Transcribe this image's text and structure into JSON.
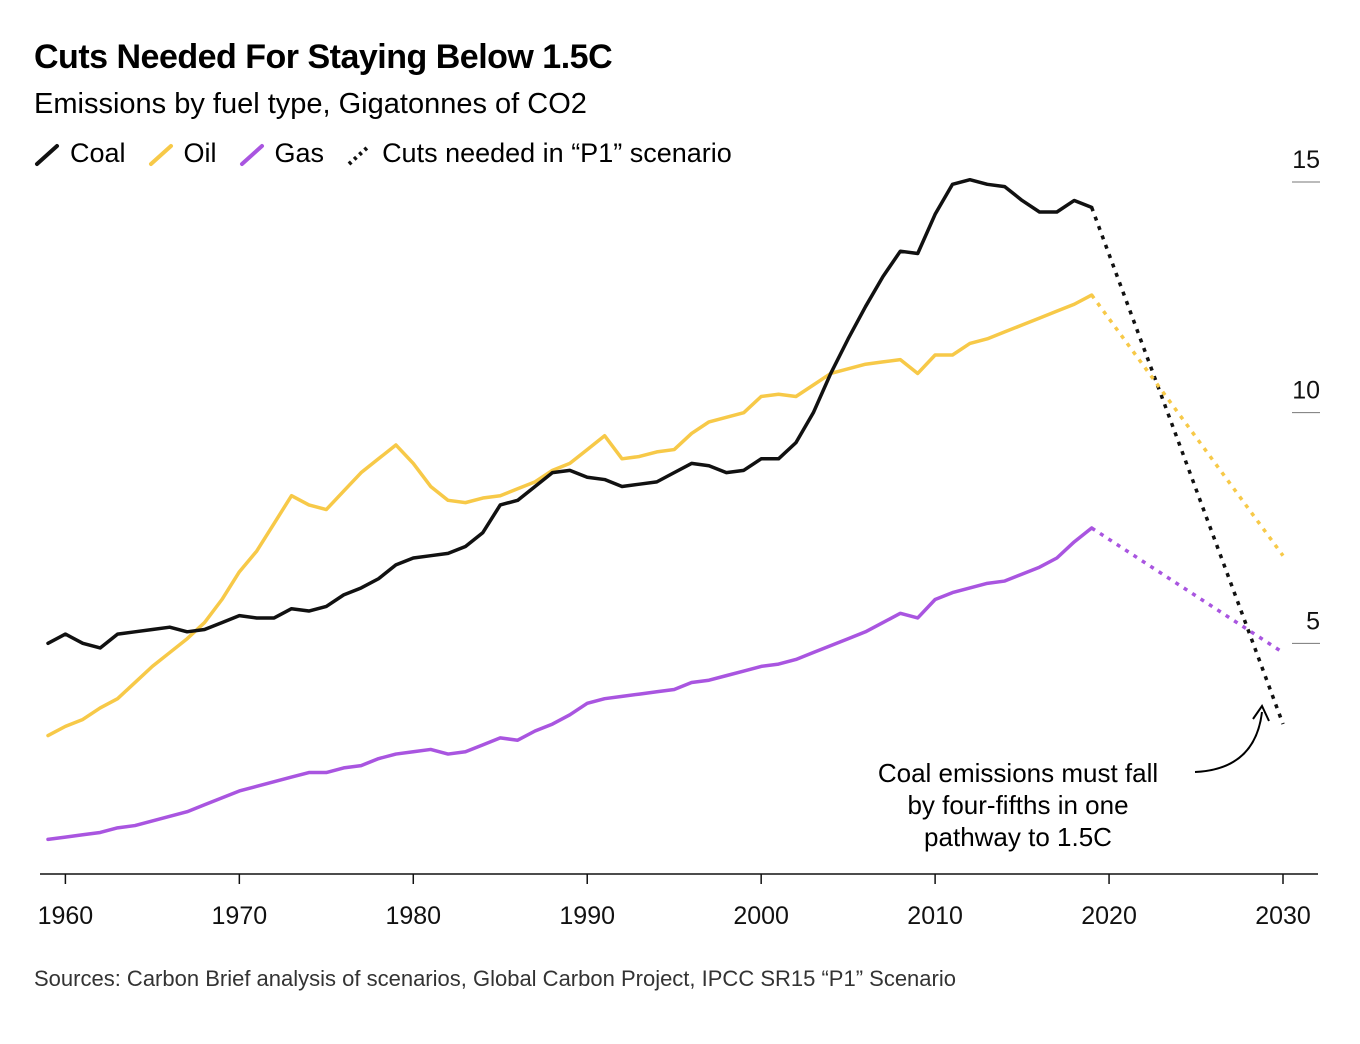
{
  "header": {
    "title": "Cuts Needed For Staying Below 1.5C",
    "subtitle": "Emissions by fuel type, Gigatonnes of CO2"
  },
  "legend": {
    "items": [
      {
        "label": "Coal",
        "color": "#111111",
        "style": "solid"
      },
      {
        "label": "Oil",
        "color": "#f7c948",
        "style": "solid"
      },
      {
        "label": "Gas",
        "color": "#a955e0",
        "style": "solid"
      },
      {
        "label": "Cuts needed in “P1” scenario",
        "color": "#111111",
        "style": "dotted"
      }
    ]
  },
  "footer": {
    "source": "Sources: Carbon Brief analysis of scenarios, Global Carbon Project, IPCC SR15 “P1” Scenario"
  },
  "annotation": {
    "lines": [
      "Coal emissions must fall",
      "by four-fifths in one",
      "pathway to 1.5C"
    ]
  },
  "chart_data": {
    "type": "line",
    "title": "Cuts Needed For Staying Below 1.5C",
    "subtitle": "Emissions by fuel type, Gigatonnes of CO2",
    "xlabel": "",
    "ylabel": "Gigatonnes of CO2",
    "xlim": [
      1959,
      2030
    ],
    "ylim": [
      0,
      15
    ],
    "x_ticks": [
      1960,
      1970,
      1980,
      1990,
      2000,
      2010,
      2020,
      2030
    ],
    "x_tick_labels": [
      "1960",
      "1970",
      "1980",
      "1990",
      "2000",
      "2010",
      "2020",
      "2030"
    ],
    "y_ticks": [
      5,
      10,
      15
    ],
    "y_tick_labels": [
      "5",
      "10",
      "15"
    ],
    "y_axis_position": "right",
    "grid": false,
    "x": [
      1959,
      1960,
      1961,
      1962,
      1963,
      1964,
      1965,
      1966,
      1967,
      1968,
      1969,
      1970,
      1971,
      1972,
      1973,
      1974,
      1975,
      1976,
      1977,
      1978,
      1979,
      1980,
      1981,
      1982,
      1983,
      1984,
      1985,
      1986,
      1987,
      1988,
      1989,
      1990,
      1991,
      1992,
      1993,
      1994,
      1995,
      1996,
      1997,
      1998,
      1999,
      2000,
      2001,
      2002,
      2003,
      2004,
      2005,
      2006,
      2007,
      2008,
      2009,
      2010,
      2011,
      2012,
      2013,
      2014,
      2015,
      2016,
      2017,
      2018,
      2019
    ],
    "series": [
      {
        "name": "Coal",
        "color": "#111111",
        "values": [
          5.0,
          5.2,
          5.0,
          4.9,
          5.2,
          5.25,
          5.3,
          5.35,
          5.25,
          5.3,
          5.45,
          5.6,
          5.55,
          5.55,
          5.75,
          5.7,
          5.8,
          6.05,
          6.2,
          6.4,
          6.7,
          6.85,
          6.9,
          6.95,
          7.1,
          7.4,
          8.0,
          8.1,
          8.4,
          8.7,
          8.75,
          8.6,
          8.55,
          8.4,
          8.45,
          8.5,
          8.7,
          8.9,
          8.85,
          8.7,
          8.75,
          9.0,
          9.0,
          9.35,
          10.0,
          10.85,
          11.6,
          12.3,
          12.95,
          13.5,
          13.45,
          14.3,
          14.95,
          15.05,
          14.95,
          14.9,
          14.6,
          14.35,
          14.35,
          14.6,
          14.45
        ]
      },
      {
        "name": "Oil",
        "color": "#f7c948",
        "values": [
          3.0,
          3.2,
          3.35,
          3.6,
          3.8,
          4.15,
          4.5,
          4.8,
          5.1,
          5.45,
          5.95,
          6.55,
          7.0,
          7.6,
          8.2,
          8.0,
          7.9,
          8.3,
          8.7,
          9.0,
          9.3,
          8.9,
          8.4,
          8.1,
          8.05,
          8.15,
          8.2,
          8.35,
          8.5,
          8.75,
          8.9,
          9.2,
          9.5,
          9.0,
          9.05,
          9.15,
          9.2,
          9.55,
          9.8,
          9.9,
          10.0,
          10.35,
          10.4,
          10.35,
          10.6,
          10.85,
          10.95,
          11.05,
          11.1,
          11.15,
          10.85,
          11.25,
          11.25,
          11.5,
          11.6,
          11.75,
          11.9,
          12.05,
          12.2,
          12.35,
          12.55
        ]
      },
      {
        "name": "Gas",
        "color": "#a955e0",
        "values": [
          0.75,
          0.8,
          0.85,
          0.9,
          1.0,
          1.05,
          1.15,
          1.25,
          1.35,
          1.5,
          1.65,
          1.8,
          1.9,
          2.0,
          2.1,
          2.2,
          2.2,
          2.3,
          2.35,
          2.5,
          2.6,
          2.65,
          2.7,
          2.6,
          2.65,
          2.8,
          2.95,
          2.9,
          3.1,
          3.25,
          3.45,
          3.7,
          3.8,
          3.85,
          3.9,
          3.95,
          4.0,
          4.15,
          4.2,
          4.3,
          4.4,
          4.5,
          4.55,
          4.65,
          4.8,
          4.95,
          5.1,
          5.25,
          5.45,
          5.65,
          5.55,
          5.95,
          6.1,
          6.2,
          6.3,
          6.35,
          6.5,
          6.65,
          6.85,
          7.2,
          7.5
        ]
      }
    ],
    "projections": [
      {
        "name": "Coal (P1 cuts)",
        "color": "#111111",
        "x": [
          2019,
          2030
        ],
        "values": [
          14.45,
          3.25
        ]
      },
      {
        "name": "Oil (P1 cuts)",
        "color": "#f7c948",
        "x": [
          2019,
          2030
        ],
        "values": [
          12.55,
          6.9
        ]
      },
      {
        "name": "Gas (P1 cuts)",
        "color": "#a955e0",
        "x": [
          2019,
          2030
        ],
        "values": [
          7.5,
          4.8
        ]
      }
    ],
    "annotations": [
      {
        "text": "Coal emissions must fall by four-fifths in one pathway to 1.5C",
        "points_to": {
          "x": 2029.5,
          "y": 3.6
        }
      }
    ]
  }
}
